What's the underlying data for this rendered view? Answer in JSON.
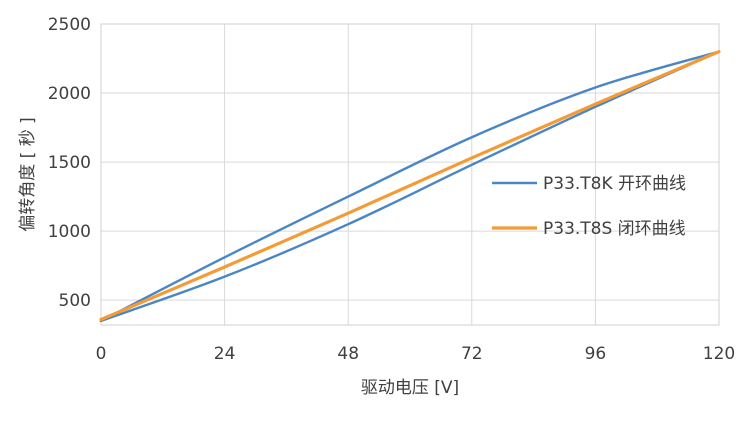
{
  "chart_data": {
    "type": "line",
    "xlabel": "驱动电压 [V]",
    "ylabel": "偏转角度 [ 秒 ]",
    "xlim": [
      0,
      120
    ],
    "ylim": [
      320,
      2500
    ],
    "x_ticks": [
      0,
      24,
      48,
      72,
      96,
      120
    ],
    "y_ticks": [
      500,
      1000,
      1500,
      2000,
      2500
    ],
    "grid": true,
    "legend_position": "right",
    "series": [
      {
        "name": "P33.T8K 开环曲线",
        "color": "#4a86c5",
        "x": [
          0,
          24,
          48,
          72,
          96,
          120
        ],
        "y": [
          350,
          810,
          1250,
          1680,
          2040,
          2300
        ]
      },
      {
        "name": "P33.T8K 开环曲线",
        "color": "#4a86c5",
        "x": [
          0,
          24,
          48,
          72,
          96,
          120
        ],
        "y": [
          350,
          670,
          1050,
          1480,
          1900,
          2300
        ]
      },
      {
        "name": "P33.T8S 闭环曲线",
        "color": "#f59b35",
        "x": [
          0,
          24,
          48,
          72,
          96,
          120
        ],
        "y": [
          360,
          740,
          1130,
          1530,
          1920,
          2300
        ]
      }
    ],
    "legend": [
      {
        "label": "P33.T8K 开环曲线",
        "color": "#4a86c5"
      },
      {
        "label": "P33.T8S 闭环曲线",
        "color": "#f59b35"
      }
    ]
  }
}
